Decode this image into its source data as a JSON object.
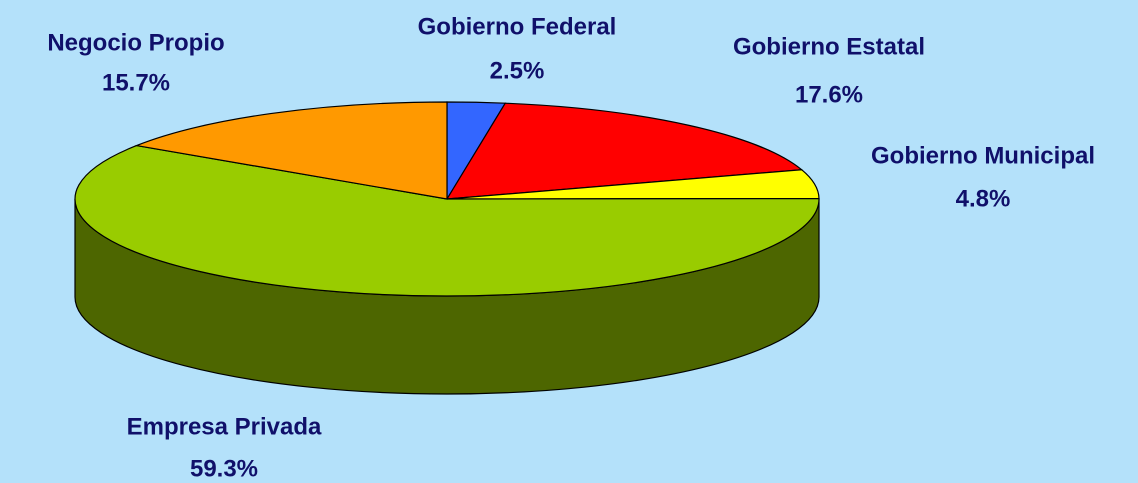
{
  "chart_data": {
    "type": "pie",
    "categories": [
      "Gobierno Federal",
      "Gobierno Estatal",
      "Gobierno Municipal",
      "Empresa Privada",
      "Negocio Propio"
    ],
    "values": [
      2.5,
      17.6,
      4.8,
      59.3,
      15.7
    ],
    "value_labels": [
      "2.5%",
      "17.6%",
      "4.8%",
      "59.3%",
      "15.7%"
    ],
    "colors": [
      "#3366ff",
      "#ff0000",
      "#ffff00",
      "#99cc00",
      "#ff9900"
    ]
  }
}
